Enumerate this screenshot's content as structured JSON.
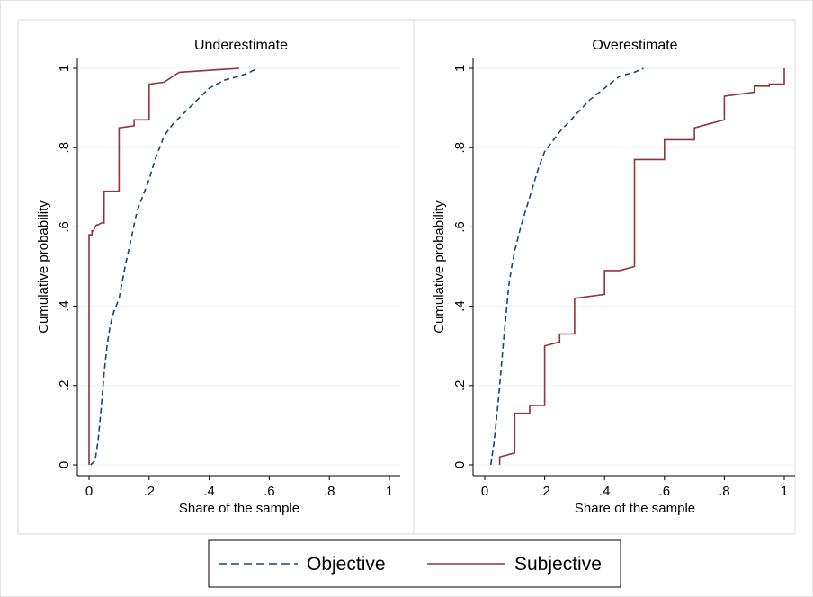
{
  "chart_data": [
    {
      "type": "line",
      "title": "Underestimate",
      "xlabel": "Share of the sample",
      "ylabel": "Cumulative probability",
      "xlim": [
        0,
        1
      ],
      "ylim": [
        0,
        1
      ],
      "x_ticks": [
        "0",
        ".2",
        ".4",
        ".6",
        ".8",
        "1"
      ],
      "y_ticks": [
        "0",
        ".2",
        ".4",
        ".6",
        ".8",
        "1"
      ],
      "grid": true,
      "series": [
        {
          "name": "Objective",
          "x": [
            0.005,
            0.02,
            0.03,
            0.04,
            0.05,
            0.06,
            0.07,
            0.08,
            0.1,
            0.12,
            0.14,
            0.16,
            0.18,
            0.2,
            0.22,
            0.25,
            0.28,
            0.32,
            0.36,
            0.4,
            0.45,
            0.5,
            0.535,
            0.56
          ],
          "y": [
            0.0,
            0.01,
            0.06,
            0.14,
            0.23,
            0.3,
            0.35,
            0.38,
            0.42,
            0.5,
            0.57,
            0.64,
            0.68,
            0.72,
            0.77,
            0.83,
            0.86,
            0.89,
            0.92,
            0.95,
            0.97,
            0.98,
            0.99,
            1.0
          ]
        },
        {
          "name": "Subjective",
          "x": [
            0.0,
            0.0,
            0.01,
            0.01,
            0.015,
            0.02,
            0.025,
            0.03,
            0.04,
            0.05,
            0.05,
            0.1,
            0.1,
            0.15,
            0.15,
            0.2,
            0.2,
            0.25,
            0.25,
            0.3,
            0.3,
            0.5
          ],
          "y": [
            0.0,
            0.58,
            0.58,
            0.59,
            0.59,
            0.6,
            0.605,
            0.605,
            0.61,
            0.61,
            0.69,
            0.69,
            0.85,
            0.855,
            0.87,
            0.87,
            0.96,
            0.965,
            0.965,
            0.99,
            0.99,
            1.0
          ],
          "step": true
        }
      ]
    },
    {
      "type": "line",
      "title": "Overestimate",
      "xlabel": "Share of the sample",
      "ylabel": "Cumulative probability",
      "xlim": [
        0,
        1
      ],
      "ylim": [
        0,
        1
      ],
      "x_ticks": [
        "0",
        ".2",
        ".4",
        ".6",
        ".8",
        "1"
      ],
      "y_ticks": [
        "0",
        ".2",
        ".4",
        ".6",
        ".8",
        "1"
      ],
      "grid": true,
      "series": [
        {
          "name": "Objective",
          "x": [
            0.02,
            0.03,
            0.04,
            0.05,
            0.06,
            0.07,
            0.08,
            0.09,
            0.1,
            0.12,
            0.14,
            0.16,
            0.18,
            0.2,
            0.25,
            0.3,
            0.35,
            0.4,
            0.45,
            0.5,
            0.53
          ],
          "y": [
            0.0,
            0.05,
            0.12,
            0.2,
            0.29,
            0.37,
            0.45,
            0.5,
            0.54,
            0.6,
            0.65,
            0.7,
            0.75,
            0.79,
            0.84,
            0.88,
            0.92,
            0.95,
            0.98,
            0.99,
            1.0
          ]
        },
        {
          "name": "Subjective",
          "x": [
            0.05,
            0.05,
            0.1,
            0.1,
            0.15,
            0.15,
            0.2,
            0.2,
            0.25,
            0.25,
            0.3,
            0.3,
            0.4,
            0.4,
            0.45,
            0.45,
            0.5,
            0.5,
            0.6,
            0.6,
            0.7,
            0.7,
            0.75,
            0.75,
            0.8,
            0.8,
            0.9,
            0.9,
            0.95,
            0.95,
            1.0,
            1.0
          ],
          "y": [
            0.0,
            0.02,
            0.03,
            0.13,
            0.13,
            0.15,
            0.15,
            0.3,
            0.31,
            0.33,
            0.33,
            0.42,
            0.43,
            0.49,
            0.49,
            0.49,
            0.5,
            0.77,
            0.77,
            0.82,
            0.82,
            0.85,
            0.86,
            0.86,
            0.87,
            0.93,
            0.94,
            0.955,
            0.955,
            0.96,
            0.96,
            1.0
          ],
          "step": true
        }
      ]
    }
  ],
  "legend": {
    "placement": "bottom",
    "items": [
      {
        "label": "Objective",
        "color": "#1a476f",
        "style": "dashed"
      },
      {
        "label": "Subjective",
        "color": "#90353b",
        "style": "solid"
      }
    ]
  },
  "colors": {
    "objective": "#1a476f",
    "subjective": "#90353b",
    "grid": "#eaf2f3",
    "frame": "#d9d9d9"
  }
}
